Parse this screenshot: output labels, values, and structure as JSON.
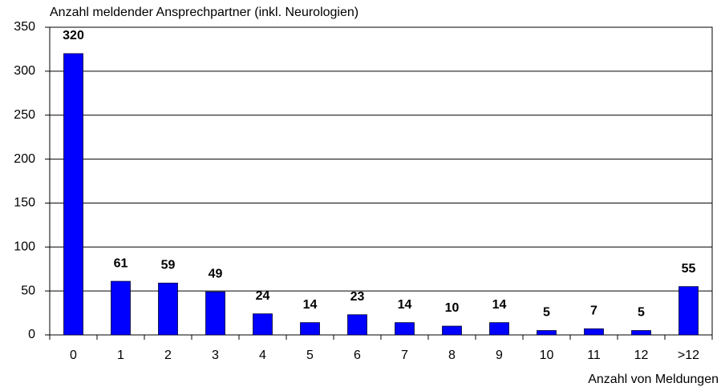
{
  "chart_data": {
    "type": "bar",
    "y_label": "Anzahl meldender Ansprechpartner (inkl. Neurologien)",
    "x_label": "Anzahl von Meldungen",
    "categories": [
      "0",
      "1",
      "2",
      "3",
      "4",
      "5",
      "6",
      "7",
      "8",
      "9",
      "10",
      "11",
      "12",
      ">12"
    ],
    "values": [
      320,
      61,
      59,
      49,
      24,
      14,
      23,
      14,
      10,
      14,
      5,
      7,
      5,
      55
    ],
    "color": "#0000ff",
    "ylim": [
      0,
      350
    ],
    "yticks": [
      0,
      50,
      100,
      150,
      200,
      250,
      300,
      350
    ],
    "grid": true
  }
}
